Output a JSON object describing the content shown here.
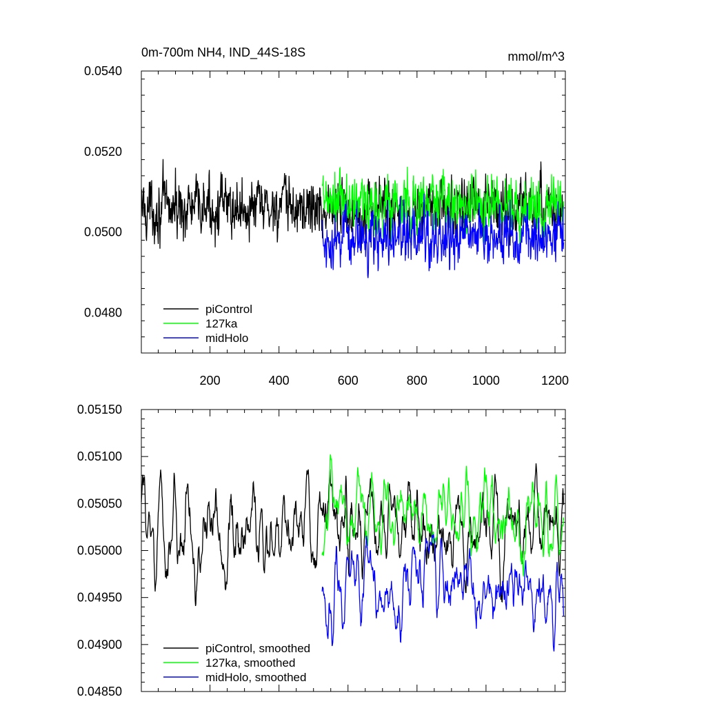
{
  "title": "0m-700m NH4, IND_44S-18S",
  "units": "mmol/m^3",
  "chart_data": [
    {
      "type": "line",
      "xlim": [
        1,
        1230
      ],
      "ylim": [
        0.047,
        0.054
      ],
      "x_ticks": [
        200,
        400,
        600,
        800,
        1000,
        1200
      ],
      "x_tick_labels": [
        "200",
        "400",
        "600",
        "800",
        "1000",
        "1200"
      ],
      "y_ticks": [
        0.048,
        0.05,
        0.052,
        0.054
      ],
      "y_tick_labels": [
        "0.0480",
        "0.0500",
        "0.0520",
        "0.0540"
      ],
      "series": [
        {
          "name": "piControl",
          "color": "#000000",
          "x_range": [
            1,
            1225
          ],
          "mean": 0.0506,
          "noise": 0.00075,
          "smoothed": false
        },
        {
          "name": "127ka",
          "color": "#00ff00",
          "x_range": [
            525,
            1225
          ],
          "mean": 0.0507,
          "noise": 0.0008,
          "smoothed": false
        },
        {
          "name": "midHolo",
          "color": "#0000ff",
          "x_range": [
            525,
            1225
          ],
          "mean": 0.04985,
          "noise": 0.0007,
          "smoothed": false
        }
      ],
      "legend": {
        "position": "bottom-left",
        "entries": [
          "piControl",
          "127ka",
          "midHolo"
        ]
      }
    },
    {
      "type": "line",
      "xlim": [
        1,
        1230
      ],
      "ylim": [
        0.0485,
        0.0515
      ],
      "x_ticks": [
        200,
        400,
        600,
        800,
        1000,
        1200
      ],
      "x_tick_labels": [],
      "y_ticks": [
        0.0485,
        0.049,
        0.0495,
        0.05,
        0.0505,
        0.051,
        0.0515
      ],
      "y_tick_labels": [
        "0.04850",
        "0.04900",
        "0.04950",
        "0.05000",
        "0.05050",
        "0.05100",
        "0.05150"
      ],
      "series": [
        {
          "name": "piControl, smoothed",
          "color": "#000000",
          "x_range": [
            1,
            1225
          ],
          "mean": 0.0502,
          "noise": 0.00045,
          "smoothed": true
        },
        {
          "name": "127ka, smoothed",
          "color": "#00ff00",
          "x_range": [
            525,
            1225
          ],
          "mean": 0.0504,
          "noise": 0.0004,
          "smoothed": true
        },
        {
          "name": "midHolo, smoothed",
          "color": "#0000ff",
          "x_range": [
            525,
            1225
          ],
          "mean": 0.0496,
          "noise": 0.0004,
          "smoothed": true
        }
      ],
      "legend": {
        "position": "bottom-left",
        "entries": [
          "piControl, smoothed",
          "127ka, smoothed",
          "midHolo, smoothed"
        ]
      }
    }
  ]
}
